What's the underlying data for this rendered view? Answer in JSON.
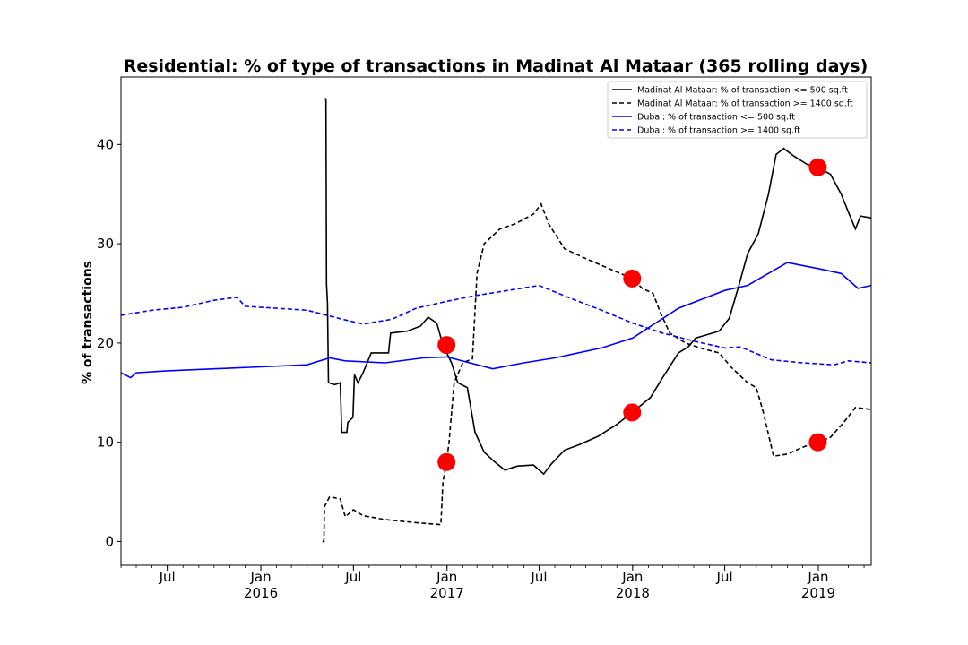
{
  "chart_data": {
    "type": "line",
    "title": "Residential: % of type of transactions in Madinat Al Mataar (365 rolling days)",
    "xlabel": "",
    "ylabel": "% of transactions",
    "xlim": [
      "2015-04-01",
      "2019-04-15"
    ],
    "ylim": [
      -2.4,
      46.8
    ],
    "yticks": [
      0,
      10,
      20,
      30,
      40
    ],
    "xticks": [
      {
        "date": "2015-07-01",
        "label": "Jul",
        "sub": ""
      },
      {
        "date": "2016-01-01",
        "label": "Jan",
        "sub": "2016"
      },
      {
        "date": "2016-07-01",
        "label": "Jul",
        "sub": ""
      },
      {
        "date": "2017-01-01",
        "label": "Jan",
        "sub": "2017"
      },
      {
        "date": "2017-07-01",
        "label": "Jul",
        "sub": ""
      },
      {
        "date": "2018-01-01",
        "label": "Jan",
        "sub": "2018"
      },
      {
        "date": "2018-07-01",
        "label": "Jul",
        "sub": ""
      },
      {
        "date": "2019-01-01",
        "label": "Jan",
        "sub": "2019"
      }
    ],
    "grid": false,
    "legend_position": "top-right",
    "series": [
      {
        "name": "Madinat Al Mataar: % of transaction <= 500 sq.ft",
        "color": "#000000",
        "style": "solid",
        "points": [
          [
            "2016-05-05",
            44.6
          ],
          [
            "2016-05-08",
            44.6
          ],
          [
            "2016-05-09",
            26.0
          ],
          [
            "2016-05-11",
            24.0
          ],
          [
            "2016-05-13",
            16.0
          ],
          [
            "2016-05-25",
            15.8
          ],
          [
            "2016-06-05",
            16.0
          ],
          [
            "2016-06-08",
            11.0
          ],
          [
            "2016-06-18",
            11.0
          ],
          [
            "2016-06-20",
            12.0
          ],
          [
            "2016-06-30",
            12.5
          ],
          [
            "2016-07-03",
            16.8
          ],
          [
            "2016-07-10",
            16.0
          ],
          [
            "2016-07-20",
            17.0
          ],
          [
            "2016-08-05",
            19.0
          ],
          [
            "2016-09-08",
            19.0
          ],
          [
            "2016-09-12",
            21.0
          ],
          [
            "2016-10-15",
            21.2
          ],
          [
            "2016-11-10",
            21.7
          ],
          [
            "2016-11-25",
            22.6
          ],
          [
            "2016-12-12",
            22.0
          ],
          [
            "2016-12-24",
            19.8
          ],
          [
            "2017-01-10",
            18.0
          ],
          [
            "2017-01-22",
            16.0
          ],
          [
            "2017-02-10",
            15.5
          ],
          [
            "2017-02-25",
            11.0
          ],
          [
            "2017-03-15",
            9.0
          ],
          [
            "2017-04-05",
            8.0
          ],
          [
            "2017-04-25",
            7.2
          ],
          [
            "2017-05-20",
            7.6
          ],
          [
            "2017-06-20",
            7.7
          ],
          [
            "2017-07-10",
            6.8
          ],
          [
            "2017-07-25",
            7.8
          ],
          [
            "2017-08-20",
            9.2
          ],
          [
            "2017-09-20",
            9.8
          ],
          [
            "2017-10-25",
            10.6
          ],
          [
            "2017-12-01",
            11.8
          ],
          [
            "2017-12-31",
            13.0
          ],
          [
            "2018-02-05",
            14.5
          ],
          [
            "2018-03-01",
            16.5
          ],
          [
            "2018-04-01",
            19.0
          ],
          [
            "2018-04-20",
            19.6
          ],
          [
            "2018-05-05",
            20.5
          ],
          [
            "2018-05-25",
            20.8
          ],
          [
            "2018-06-20",
            21.2
          ],
          [
            "2018-07-10",
            22.5
          ],
          [
            "2018-07-30",
            26.0
          ],
          [
            "2018-08-15",
            29.0
          ],
          [
            "2018-09-05",
            31.0
          ],
          [
            "2018-09-25",
            35.0
          ],
          [
            "2018-10-10",
            39.0
          ],
          [
            "2018-10-25",
            39.6
          ],
          [
            "2018-11-15",
            38.8
          ],
          [
            "2018-12-10",
            38.0
          ],
          [
            "2018-12-31",
            37.7
          ],
          [
            "2019-01-25",
            37.0
          ],
          [
            "2019-02-15",
            35.0
          ],
          [
            "2019-03-01",
            33.2
          ],
          [
            "2019-03-15",
            31.5
          ],
          [
            "2019-03-25",
            32.8
          ],
          [
            "2019-04-15",
            32.6
          ]
        ]
      },
      {
        "name": "Madinat Al Mataar: % of transaction >= 1400 sq.ft",
        "color": "#000000",
        "style": "dashed",
        "points": [
          [
            "2016-05-01",
            0.0
          ],
          [
            "2016-05-04",
            0.0
          ],
          [
            "2016-05-05",
            3.5
          ],
          [
            "2016-05-15",
            4.5
          ],
          [
            "2016-06-05",
            4.3
          ],
          [
            "2016-06-15",
            2.5
          ],
          [
            "2016-07-01",
            3.2
          ],
          [
            "2016-07-20",
            2.6
          ],
          [
            "2016-09-01",
            2.2
          ],
          [
            "2016-11-01",
            1.9
          ],
          [
            "2016-12-20",
            1.7
          ],
          [
            "2016-12-24",
            6.0
          ],
          [
            "2016-12-31",
            8.0
          ],
          [
            "2017-01-05",
            10.0
          ],
          [
            "2017-01-15",
            16.0
          ],
          [
            "2017-02-01",
            18.0
          ],
          [
            "2017-02-20",
            18.4
          ],
          [
            "2017-03-01",
            27.0
          ],
          [
            "2017-03-15",
            30.0
          ],
          [
            "2017-04-15",
            31.5
          ],
          [
            "2017-05-15",
            32.0
          ],
          [
            "2017-06-20",
            33.0
          ],
          [
            "2017-07-05",
            34.0
          ],
          [
            "2017-07-20",
            32.0
          ],
          [
            "2017-08-20",
            29.5
          ],
          [
            "2017-10-01",
            28.5
          ],
          [
            "2017-12-31",
            26.5
          ],
          [
            "2018-01-20",
            25.5
          ],
          [
            "2018-02-10",
            25.0
          ],
          [
            "2018-02-25",
            23.0
          ],
          [
            "2018-03-15",
            21.0
          ],
          [
            "2018-04-15",
            20.0
          ],
          [
            "2018-05-20",
            19.4
          ],
          [
            "2018-06-20",
            19.0
          ],
          [
            "2018-07-15",
            17.5
          ],
          [
            "2018-08-15",
            16.0
          ],
          [
            "2018-09-01",
            15.5
          ],
          [
            "2018-09-15",
            13.0
          ],
          [
            "2018-10-05",
            8.6
          ],
          [
            "2018-11-01",
            8.8
          ],
          [
            "2018-12-01",
            9.5
          ],
          [
            "2018-12-31",
            10.0
          ],
          [
            "2019-01-25",
            10.5
          ],
          [
            "2019-02-20",
            12.0
          ],
          [
            "2019-03-15",
            13.5
          ],
          [
            "2019-04-15",
            13.3
          ]
        ]
      },
      {
        "name": "Dubai: % of transaction <= 500 sq.ft",
        "color": "#0000ff",
        "style": "solid",
        "points": [
          [
            "2015-04-01",
            17.0
          ],
          [
            "2015-04-20",
            16.5
          ],
          [
            "2015-05-01",
            17.0
          ],
          [
            "2015-07-01",
            17.2
          ],
          [
            "2015-10-01",
            17.4
          ],
          [
            "2016-01-01",
            17.6
          ],
          [
            "2016-04-01",
            17.8
          ],
          [
            "2016-05-15",
            18.5
          ],
          [
            "2016-06-15",
            18.2
          ],
          [
            "2016-09-01",
            18.0
          ],
          [
            "2016-11-15",
            18.5
          ],
          [
            "2017-01-01",
            18.6
          ],
          [
            "2017-04-01",
            17.4
          ],
          [
            "2017-06-01",
            18.0
          ],
          [
            "2017-08-01",
            18.5
          ],
          [
            "2017-11-01",
            19.5
          ],
          [
            "2018-01-01",
            20.5
          ],
          [
            "2018-04-01",
            23.5
          ],
          [
            "2018-07-01",
            25.3
          ],
          [
            "2018-08-15",
            25.8
          ],
          [
            "2018-11-01",
            28.1
          ],
          [
            "2019-01-01",
            27.5
          ],
          [
            "2019-02-15",
            27.0
          ],
          [
            "2019-03-20",
            25.5
          ],
          [
            "2019-04-15",
            25.8
          ]
        ]
      },
      {
        "name": "Dubai: % of transaction >= 1400 sq.ft",
        "color": "#0000ff",
        "style": "dashed",
        "points": [
          [
            "2015-04-01",
            22.8
          ],
          [
            "2015-06-01",
            23.3
          ],
          [
            "2015-08-01",
            23.6
          ],
          [
            "2015-10-01",
            24.3
          ],
          [
            "2015-11-15",
            24.6
          ],
          [
            "2015-12-01",
            23.7
          ],
          [
            "2016-02-01",
            23.5
          ],
          [
            "2016-04-01",
            23.3
          ],
          [
            "2016-06-01",
            22.5
          ],
          [
            "2016-07-20",
            21.9
          ],
          [
            "2016-09-15",
            22.4
          ],
          [
            "2016-11-01",
            23.5
          ],
          [
            "2017-01-01",
            24.2
          ],
          [
            "2017-03-01",
            24.8
          ],
          [
            "2017-05-01",
            25.3
          ],
          [
            "2017-07-01",
            25.8
          ],
          [
            "2017-09-01",
            24.5
          ],
          [
            "2017-11-01",
            23.3
          ],
          [
            "2018-01-01",
            22.0
          ],
          [
            "2018-03-01",
            21.0
          ],
          [
            "2018-05-01",
            20.2
          ],
          [
            "2018-07-01",
            19.5
          ],
          [
            "2018-08-01",
            19.6
          ],
          [
            "2018-10-01",
            18.3
          ],
          [
            "2018-12-01",
            18.0
          ],
          [
            "2019-02-01",
            17.8
          ],
          [
            "2019-03-01",
            18.2
          ],
          [
            "2019-04-15",
            18.0
          ]
        ]
      }
    ],
    "markers": {
      "color": "#ff0000",
      "points": [
        [
          "2016-12-31",
          19.8
        ],
        [
          "2016-12-31",
          8.0
        ],
        [
          "2017-12-31",
          26.5
        ],
        [
          "2017-12-31",
          13.0
        ],
        [
          "2018-12-31",
          37.7
        ],
        [
          "2018-12-31",
          10.0
        ]
      ]
    }
  }
}
